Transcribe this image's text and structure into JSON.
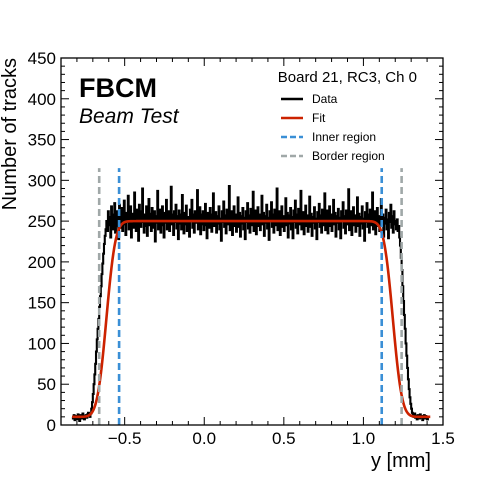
{
  "chart_data": {
    "type": "line",
    "title": "",
    "experiment_label": "FBCM",
    "experiment_sublabel": "Beam Test",
    "legend_title": "Board 21, RC3, Ch 0",
    "legend_placement": "top-right",
    "xlabel": "y [mm]",
    "ylabel": "Number of tracks",
    "xlim": [
      -0.9,
      1.5
    ],
    "ylim": [
      0,
      450
    ],
    "xticks": [
      -0.5,
      0.0,
      0.5,
      1.0,
      1.5
    ],
    "xtick_labels": [
      "−0.5",
      "0.0",
      "0.5",
      "1.0",
      "1.5"
    ],
    "yticks": [
      0,
      50,
      100,
      150,
      200,
      250,
      300,
      350,
      400,
      450
    ],
    "ytick_labels": [
      "0",
      "50",
      "100",
      "150",
      "200",
      "250",
      "300",
      "350",
      "400",
      "450"
    ],
    "grid": false,
    "series": [
      {
        "name": "Data",
        "color": "#000000",
        "style": "solid",
        "x_start": -0.83,
        "x_step": 0.005,
        "values": [
          10,
          8,
          12,
          6,
          9,
          11,
          7,
          13,
          10,
          5,
          12,
          9,
          8,
          14,
          11,
          7,
          10,
          12,
          9,
          13,
          15,
          12,
          10,
          14,
          20,
          28,
          38,
          50,
          62,
          75,
          90,
          105,
          118,
          130,
          145,
          158,
          170,
          185,
          198,
          210,
          222,
          232,
          240,
          250,
          238,
          262,
          245,
          255,
          230,
          268,
          248,
          240,
          258,
          272,
          236,
          250,
          262,
          244,
          228,
          270,
          255,
          242,
          266,
          238,
          252,
          275,
          246,
          233,
          260,
          249,
          281,
          240,
          256,
          268,
          230,
          247,
          259,
          242,
          285,
          251,
          238,
          264,
          247,
          226,
          270,
          255,
          243,
          262,
          290,
          249,
          236,
          258,
          244,
          268,
          232,
          252,
          277,
          245,
          259,
          238,
          266,
          250,
          242,
          262,
          225,
          256,
          248,
          287,
          240,
          258,
          264,
          236,
          252,
          268,
          245,
          230,
          260,
          248,
          276,
          240,
          255,
          262,
          238,
          250,
          292,
          246,
          258,
          233,
          262,
          249,
          270,
          241,
          256,
          228,
          263,
          247,
          258,
          240,
          282,
          252,
          235,
          260,
          246,
          269,
          238,
          255,
          248,
          231,
          264,
          250,
          276,
          242,
          258,
          236,
          262,
          248,
          255,
          288,
          240,
          252,
          267,
          234,
          258,
          246,
          262,
          239,
          254,
          271,
          245,
          229,
          260,
          250,
          242,
          266,
          254,
          237,
          258,
          284,
          244,
          252,
          261,
          236,
          256,
          247,
          268,
          240,
          253,
          226,
          262,
          249,
          274,
          243,
          257,
          235,
          264,
          250,
          246,
          293,
          239,
          256,
          262,
          233,
          251,
          268,
          244,
          258,
          237,
          250,
          279,
          243,
          260,
          231,
          256,
          247,
          266,
          240,
          254,
          228,
          262,
          249,
          272,
          241,
          257,
          236,
          265,
          251,
          245,
          286,
          238,
          255,
          263,
          234,
          250,
          267,
          244,
          258,
          239,
          252,
          281,
          246,
          260,
          232,
          256,
          248,
          270,
          241,
          254,
          227,
          262,
          250,
          273,
          243,
          258,
          236,
          264,
          249,
          245,
          290,
          239,
          254,
          262,
          233,
          252,
          268,
          243,
          256,
          238,
          251,
          278,
          245,
          260,
          230,
          257,
          247,
          266,
          240,
          255,
          229,
          263,
          249,
          275,
          242,
          258,
          235,
          265,
          250,
          246,
          287,
          240,
          256,
          261,
          234,
          251,
          269,
          244,
          257,
          237,
          250,
          280,
          243,
          259,
          232,
          255,
          248,
          267,
          241,
          253,
          228,
          261,
          249,
          271,
          243,
          257,
          236,
          264,
          252,
          245,
          284,
          239,
          255,
          263,
          235,
          250,
          268,
          244,
          258,
          238,
          252,
          276,
          246,
          260,
          231,
          256,
          248,
          265,
          240,
          254,
          229,
          262,
          250,
          273,
          242,
          256,
          235,
          263,
          249,
          246,
          289,
          239,
          254,
          262,
          233,
          251,
          267,
          245,
          257,
          237,
          250,
          279,
          244,
          259,
          232,
          255,
          247,
          268,
          241,
          253,
          226,
          261,
          249,
          272,
          243,
          258,
          236,
          264,
          251,
          245,
          285,
          240,
          255,
          262,
          234,
          252,
          266,
          244,
          256,
          238,
          250,
          277,
          245,
          258,
          231,
          254,
          247,
          264,
          240,
          252,
          229,
          260,
          249,
          270,
          242,
          256,
          236,
          262,
          250,
          246,
          240,
          252,
          238,
          244,
          230,
          220,
          205,
          190,
          170,
          152,
          135,
          118,
          100,
          85,
          70,
          56,
          44,
          34,
          26,
          20,
          15,
          12,
          10,
          14,
          9,
          11,
          7,
          12,
          10,
          8,
          13,
          9,
          11,
          6,
          10,
          12,
          8,
          11,
          9,
          7,
          10
        ]
      },
      {
        "name": "Fit",
        "color": "#cc2200",
        "style": "solid",
        "model": "erf_plateau",
        "plateau": 250,
        "baseline": 10,
        "rise_center": -0.615,
        "fall_center": 1.185,
        "sigma": 0.045,
        "x_range": [
          -0.83,
          1.42
        ]
      },
      {
        "name": "Inner region",
        "color": "#3a8fd6",
        "style": "dashed",
        "vlines": [
          -0.535,
          1.115
        ],
        "y_top": 315
      },
      {
        "name": "Border region",
        "color": "#a0a8a8",
        "style": "dashed",
        "vlines": [
          -0.66,
          1.24
        ],
        "y_top": 315
      }
    ]
  }
}
